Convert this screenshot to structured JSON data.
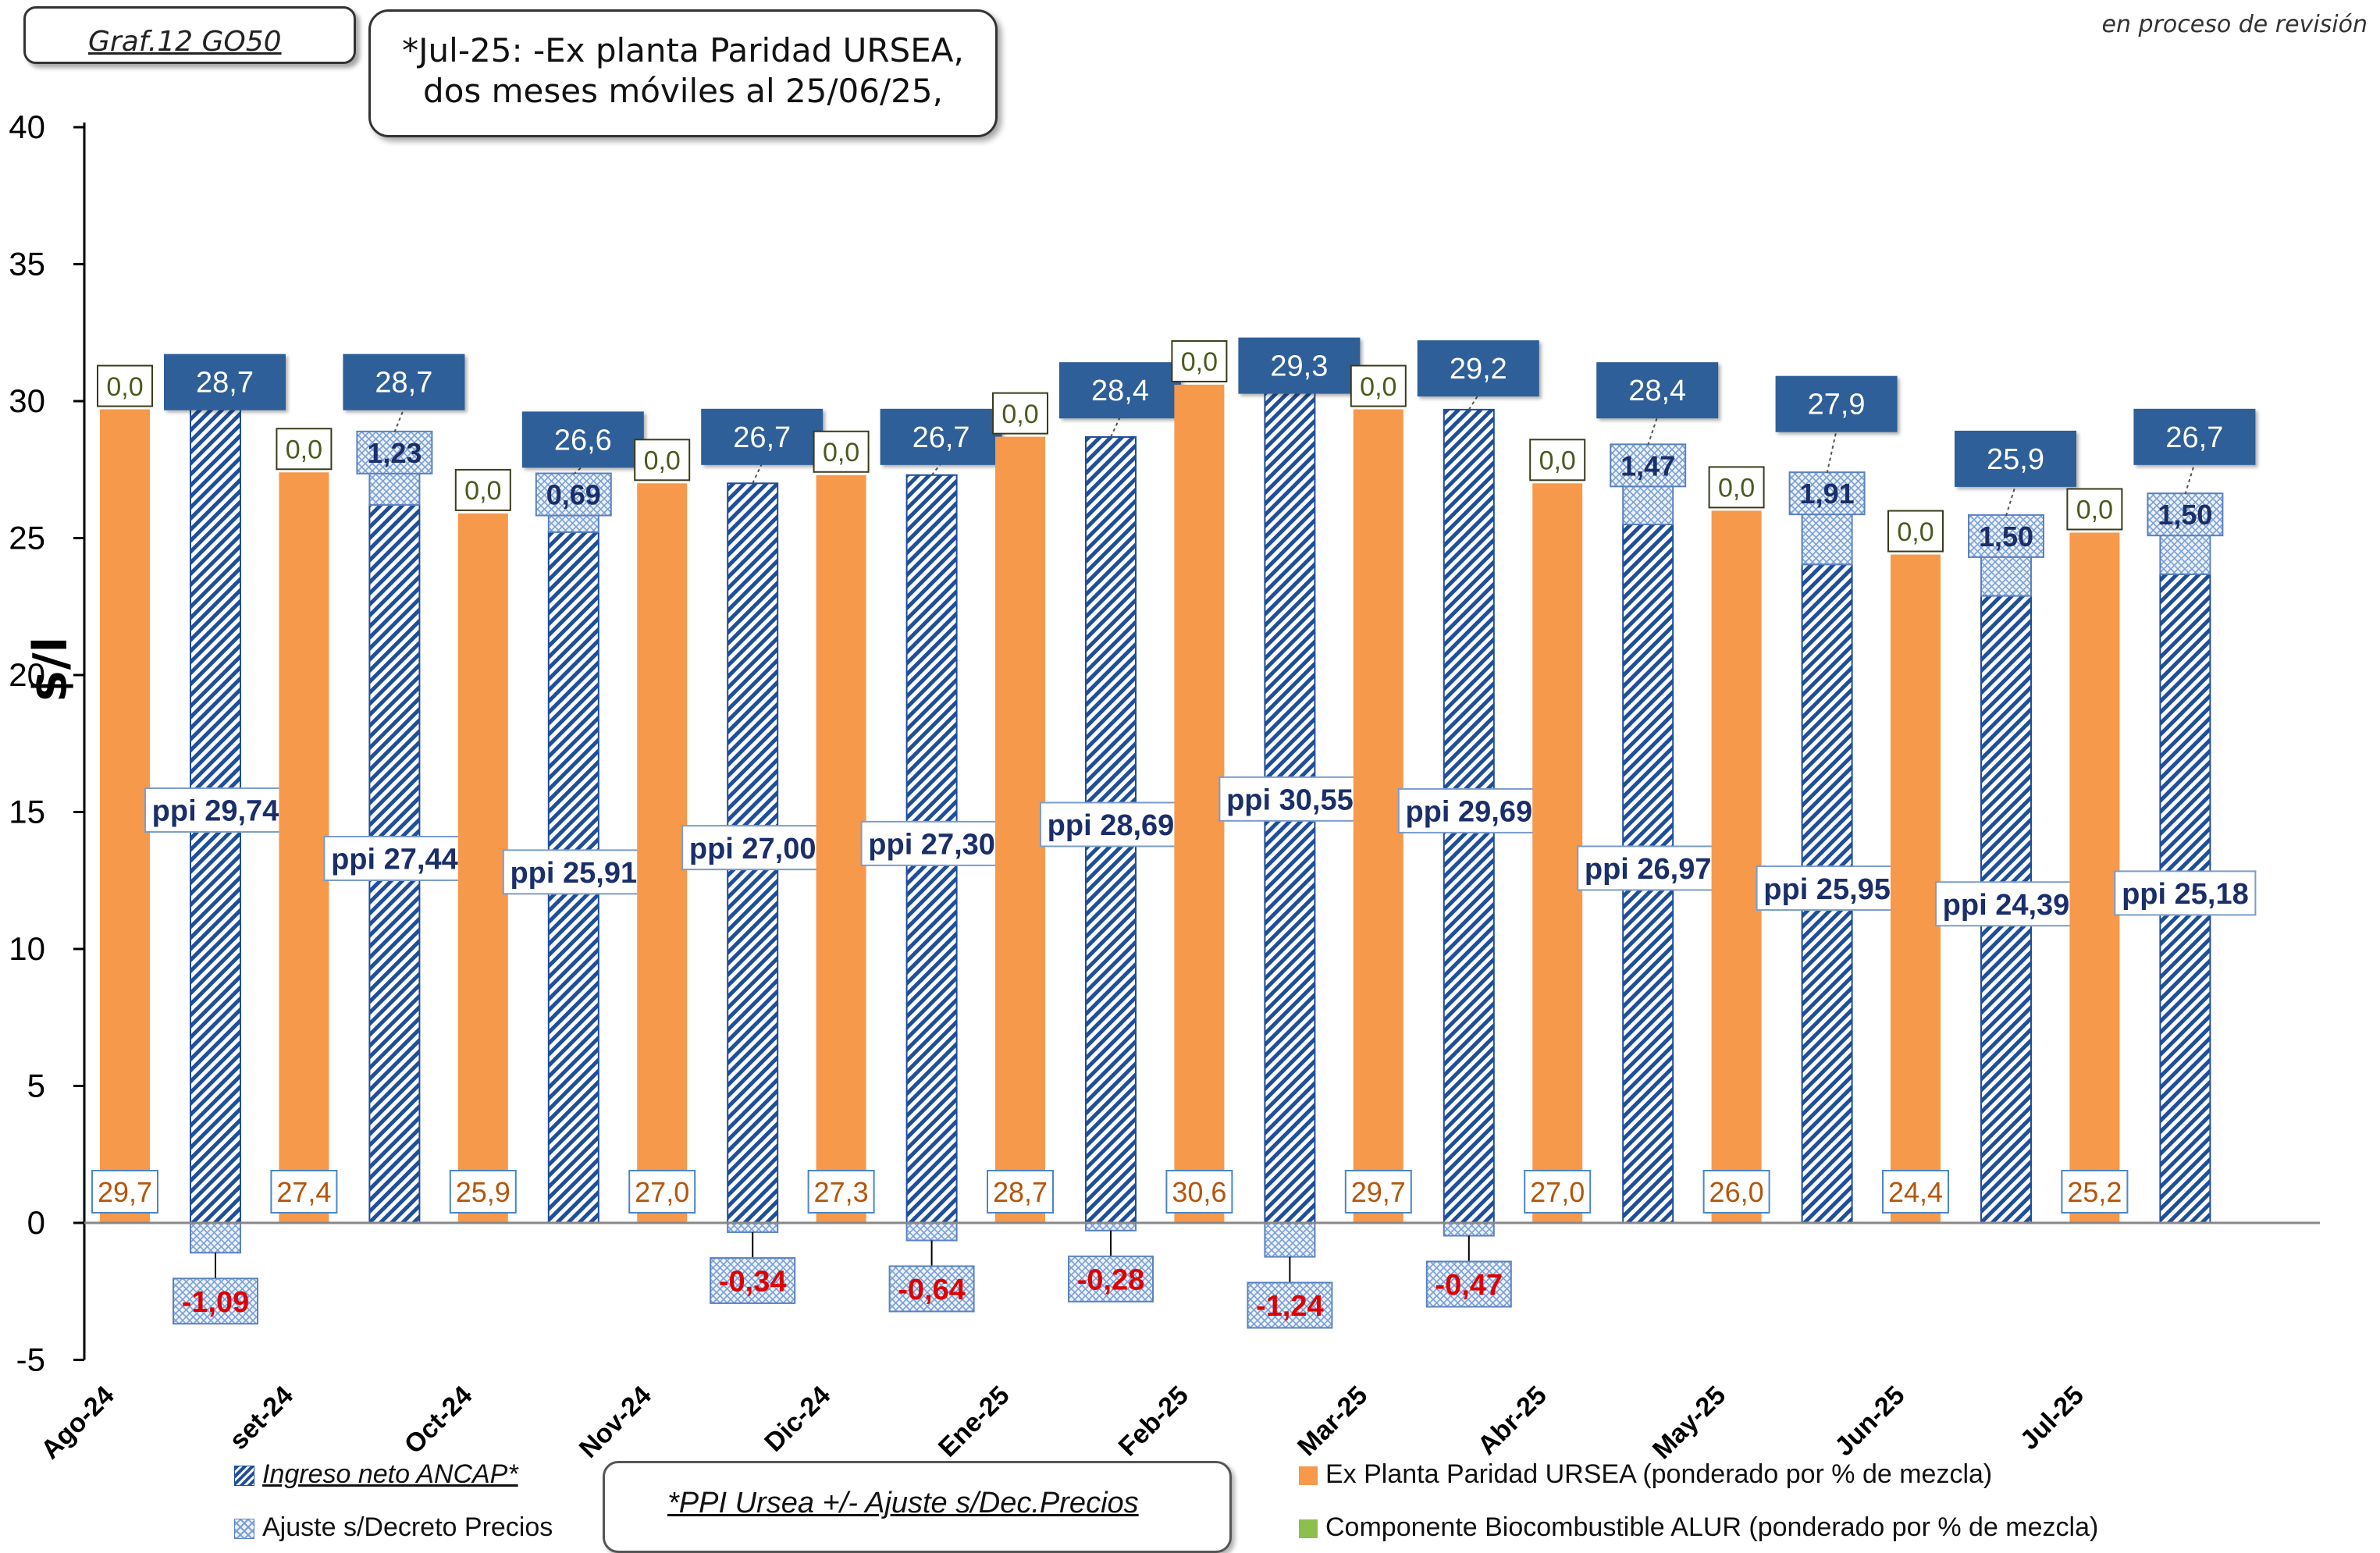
{
  "header": {
    "graf_tag": "Graf.12  GO50",
    "note_line1": "*Jul-25: -Ex planta Paridad URSEA,",
    "note_line2": "dos meses móviles al 25/06/25,",
    "revision": "en proceso de revisión"
  },
  "legend": {
    "ingreso": "Ingreso neto ANCAP*",
    "ajuste": "Ajuste s/Decreto Precios",
    "ex_planta": "Ex Planta Paridad URSEA (ponderado por % de mezcla)",
    "bio": "Componente Biocombustible ALUR (ponderado por % de mezcla)",
    "ppi_note": "*PPI Ursea +/- Ajuste s/Dec.Precios"
  },
  "colors": {
    "ex_planta": "#f6994b",
    "ingreso": "#1f4e9a",
    "ajuste": "#7aa0d8",
    "total_box": "#2f5f98",
    "bio_label_text": "#4a5a1e",
    "ex_label_text": "#b4560c",
    "neg_text": "#e00000",
    "ppi_text": "#1a2f6a"
  },
  "chart_data": {
    "type": "bar",
    "ylabel": "$/l",
    "ylim": [
      -5,
      40
    ],
    "yticks": [
      -5,
      0,
      5,
      10,
      15,
      20,
      25,
      30,
      35,
      40
    ],
    "categories": [
      "Ago-24",
      "set-24",
      "Oct-24",
      "Nov-24",
      "Dic-24",
      "Ene-25",
      "Feb-25",
      "Mar-25",
      "Abr-25",
      "May-25",
      "Jun-25",
      "Jul-25"
    ],
    "series": [
      {
        "name": "Ex Planta Paridad URSEA (ponderado por % de mezcla)",
        "values": [
          29.7,
          27.4,
          25.9,
          27.0,
          27.3,
          28.7,
          30.6,
          29.7,
          27.0,
          26.0,
          24.4,
          25.2
        ],
        "labels": [
          "29,7",
          "27,4",
          "25,9",
          "27,0",
          "27,3",
          "28,7",
          "30,6",
          "29,7",
          "27,0",
          "26,0",
          "24,4",
          "25,2"
        ]
      },
      {
        "name": "Componente Biocombustible ALUR (ponderado por % de mezcla)",
        "values": [
          0.0,
          0.0,
          0.0,
          0.0,
          0.0,
          0.0,
          0.0,
          0.0,
          0.0,
          0.0,
          0.0,
          0.0
        ],
        "labels": [
          "0,0",
          "0,0",
          "0,0",
          "0,0",
          "0,0",
          "0,0",
          "0,0",
          "0,0",
          "0,0",
          "0,0",
          "0,0",
          "0,0"
        ]
      },
      {
        "name": "Ingreso neto ANCAP*",
        "values": [
          29.74,
          27.44,
          25.91,
          27.0,
          27.3,
          28.69,
          30.55,
          29.69,
          26.97,
          25.95,
          24.39,
          25.18
        ],
        "labels": [
          "ppi 29,74",
          "ppi 27,44",
          "ppi 25,91",
          "ppi 27,00",
          "ppi 27,30",
          "ppi 28,69",
          "ppi 30,55",
          "ppi 29,69",
          "ppi 26,97",
          "ppi 25,95",
          "ppi 24,39",
          "ppi 25,18"
        ]
      },
      {
        "name": "Ajuste s/Decreto Precios",
        "values": [
          -1.09,
          1.23,
          0.69,
          -0.34,
          -0.64,
          -0.28,
          -1.24,
          -0.47,
          1.47,
          1.91,
          1.5,
          1.5
        ],
        "labels": [
          "-1,09",
          "1,23",
          "0,69",
          "-0,34",
          "-0,64",
          "-0,28",
          "-1,24",
          "-0,47",
          "1,47",
          "1,91",
          "1,50",
          "1,50"
        ]
      }
    ],
    "totals": {
      "values": [
        28.7,
        28.7,
        26.6,
        26.7,
        26.7,
        28.4,
        29.3,
        29.2,
        28.4,
        27.9,
        25.9,
        26.7
      ],
      "labels": [
        "28,7",
        "28,7",
        "26,6",
        "26,7",
        "26,7",
        "28,4",
        "29,3",
        "29,2",
        "28,4",
        "27,9",
        "25,9",
        "26,7"
      ]
    }
  }
}
